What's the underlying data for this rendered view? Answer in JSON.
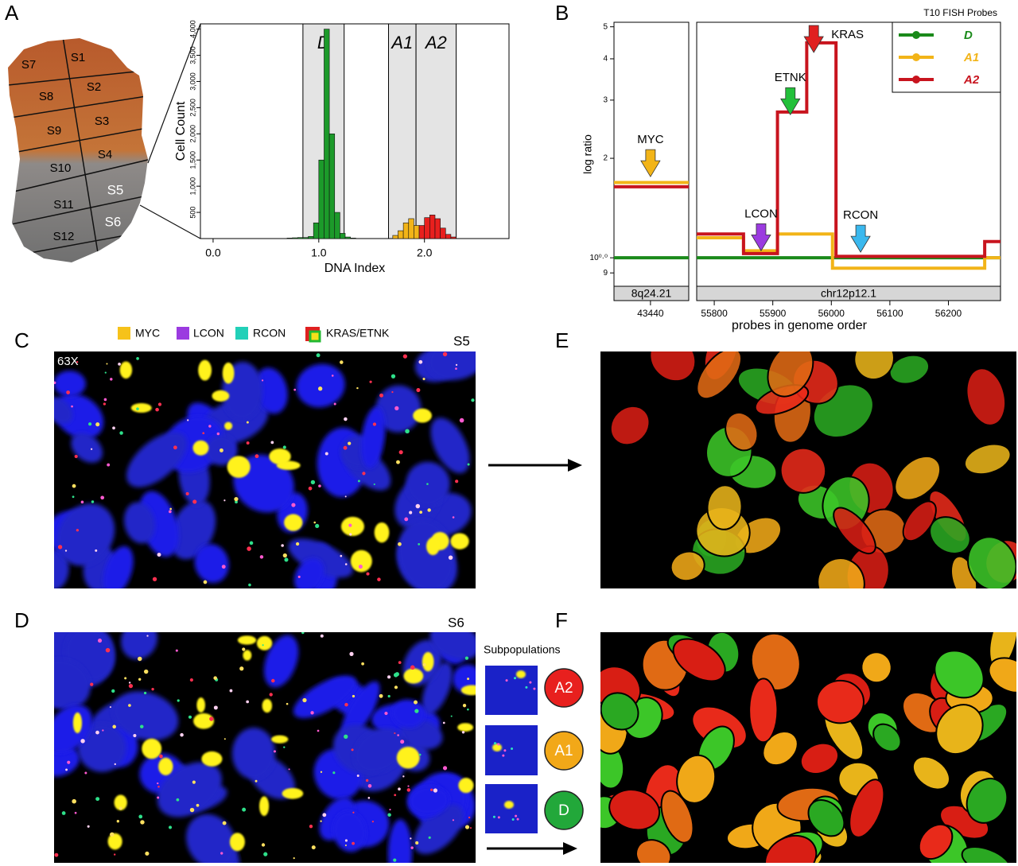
{
  "panels": [
    "A",
    "B",
    "C",
    "D",
    "E",
    "F"
  ],
  "tissue": {
    "sections": [
      "S1",
      "S2",
      "S3",
      "S4",
      "S5",
      "S6",
      "S7",
      "S8",
      "S9",
      "S10",
      "S11",
      "S12"
    ]
  },
  "chart_data": [
    {
      "type": "histogram",
      "x_label": "DNA Index",
      "y_label": "Cell Count",
      "bins": [
        0.7,
        0.75,
        0.8,
        0.85,
        0.9,
        0.95,
        1.0,
        1.05,
        1.1,
        1.15,
        1.2,
        1.25,
        1.3,
        1.35,
        1.4,
        1.45,
        1.5,
        1.55,
        1.6,
        1.65,
        1.7,
        1.75,
        1.8,
        1.85,
        1.9,
        1.95,
        2.0,
        2.05,
        2.1,
        2.15,
        2.2,
        2.25,
        2.3,
        2.35,
        2.4,
        2.45,
        2.5,
        2.55,
        2.6,
        2.65,
        2.7,
        2.75,
        2.8
      ],
      "series": [
        {
          "color": "#1c9a2a",
          "values": [
            10,
            15,
            20,
            20,
            40,
            300,
            1500,
            4000,
            2000,
            500,
            100,
            30,
            10,
            0,
            0,
            0,
            0,
            0,
            0,
            0,
            0,
            0,
            0,
            0,
            0,
            0,
            0,
            0,
            0,
            0,
            0,
            0,
            0,
            0,
            0,
            0,
            0,
            0,
            0,
            0,
            0,
            0
          ]
        },
        {
          "color": "#f2b418",
          "values": [
            0,
            0,
            0,
            0,
            0,
            0,
            0,
            0,
            0,
            0,
            0,
            0,
            0,
            0,
            0,
            0,
            0,
            0,
            0,
            0,
            60,
            150,
            300,
            380,
            250,
            0,
            0,
            0,
            0,
            0,
            0,
            0,
            0,
            0,
            0,
            0,
            0,
            0,
            0,
            0,
            0,
            0
          ]
        },
        {
          "color": "#e8201e",
          "values": [
            0,
            0,
            0,
            0,
            0,
            0,
            0,
            0,
            0,
            0,
            0,
            0,
            0,
            0,
            0,
            0,
            0,
            0,
            0,
            0,
            0,
            0,
            0,
            0,
            0,
            250,
            400,
            450,
            380,
            200,
            80,
            30,
            0,
            0,
            0,
            0,
            0,
            0,
            0,
            0,
            0,
            0
          ]
        }
      ],
      "gates": [
        {
          "label": "D",
          "range": [
            0.85,
            1.24
          ]
        },
        {
          "label": "A1",
          "range": [
            1.66,
            1.92
          ]
        },
        {
          "label": "A2",
          "range": [
            1.92,
            2.3
          ]
        }
      ],
      "xlim": [
        -0.12,
        2.8
      ],
      "xticks": [
        {
          "value": 0,
          "label": "0.0"
        },
        {
          "value": 1,
          "label": "1.0"
        },
        {
          "value": 2,
          "label": "2.0"
        }
      ],
      "ylim": [
        0,
        4100
      ],
      "yticks": [
        500,
        {
          "value": 1000,
          "label": "1,000"
        },
        {
          "value": 1500,
          "label": "1,500"
        },
        {
          "value": 2000,
          "label": "2,000"
        },
        {
          "value": 2500,
          "label": "2,500"
        },
        {
          "value": 3000,
          "label": "3,000"
        },
        {
          "value": 3500,
          "label": "3,500"
        },
        {
          "value": 4000,
          "label": "4,000"
        }
      ]
    },
    {
      "type": "line",
      "step": true,
      "y_label": "log ratio",
      "band_label": "8q24.21",
      "log_y": true,
      "x": [
        43378,
        43505
      ],
      "series": [
        {
          "color": "#f2b418",
          "values": [
            1.69,
            1.69
          ]
        },
        {
          "color": "#c8141e",
          "values": [
            1.64,
            1.64
          ]
        },
        {
          "color": "#1a8a1a",
          "values": [
            1.0,
            1.0
          ]
        }
      ],
      "annotations": [
        {
          "text": "MYC",
          "x": 43440,
          "y": 1.76,
          "color": "#f2b418",
          "position": "above"
        }
      ],
      "xlim": [
        43378,
        43505
      ],
      "xticks": [
        43440
      ],
      "ylim": [
        0.82,
        5.16
      ],
      "yticks": [
        {
          "value": 0.9,
          "label": "9"
        },
        {
          "value": 1,
          "label": "10⁰·⁰"
        },
        2,
        3,
        4,
        5
      ]
    },
    {
      "type": "line",
      "step": true,
      "x_label": "probes in genome order",
      "band_label": "chr12p12.1",
      "log_y": true,
      "legend_title": "T10 FISH Probes",
      "legend": "upper right",
      "x": [
        55770,
        55850,
        55908,
        55958,
        56002,
        56008,
        56262,
        56289
      ],
      "series": [
        {
          "name": "D",
          "color": "#1a8a1a",
          "values": [
            1.0,
            1.0,
            1.0,
            1.0,
            1.0,
            1.0,
            1.0,
            1.0
          ]
        },
        {
          "name": "A1",
          "color": "#f2b418",
          "values": [
            1.15,
            1.05,
            1.18,
            1.18,
            0.93,
            0.93,
            1.0,
            1.0
          ]
        },
        {
          "name": "A2",
          "color": "#c8141e",
          "values": [
            1.18,
            1.03,
            2.76,
            4.47,
            4.47,
            1.01,
            1.12,
            1.12
          ]
        }
      ],
      "annotations": [
        {
          "text": "LCON",
          "x": 55880,
          "y": 1.05,
          "color": "#9b3be0",
          "position": "above"
        },
        {
          "text": "ETNK",
          "x": 55930,
          "y": 2.71,
          "color": "#22c03a",
          "position": "above"
        },
        {
          "text": "KRAS",
          "x": 55970,
          "y": 4.18,
          "color": "#e02020",
          "position": "right"
        },
        {
          "text": "RCON",
          "x": 56050,
          "y": 1.04,
          "color": "#3ab8ee",
          "position": "above"
        }
      ],
      "xlim": [
        55770,
        56289
      ],
      "xticks": [
        55800,
        55900,
        56000,
        56100,
        56200
      ],
      "ylim": [
        0.82,
        5.16
      ]
    }
  ],
  "fish": {
    "legend": [
      {
        "label": "MYC",
        "color": "#f6c21a"
      },
      {
        "label": "LCON",
        "color": "#9b3be0"
      },
      {
        "label": "RCON",
        "color": "#22d0b8"
      },
      {
        "label": "KRAS/ETNK",
        "color": "#e02020"
      }
    ],
    "magnification": "63X",
    "slide_c": "S5",
    "slide_d": "S6",
    "subpopulations_title": "Subpopulations",
    "subpopulations": [
      {
        "label": "A2",
        "color": "#e8201e"
      },
      {
        "label": "A1",
        "color": "#f2a818"
      },
      {
        "label": "D",
        "color": "#22a83a"
      }
    ]
  }
}
